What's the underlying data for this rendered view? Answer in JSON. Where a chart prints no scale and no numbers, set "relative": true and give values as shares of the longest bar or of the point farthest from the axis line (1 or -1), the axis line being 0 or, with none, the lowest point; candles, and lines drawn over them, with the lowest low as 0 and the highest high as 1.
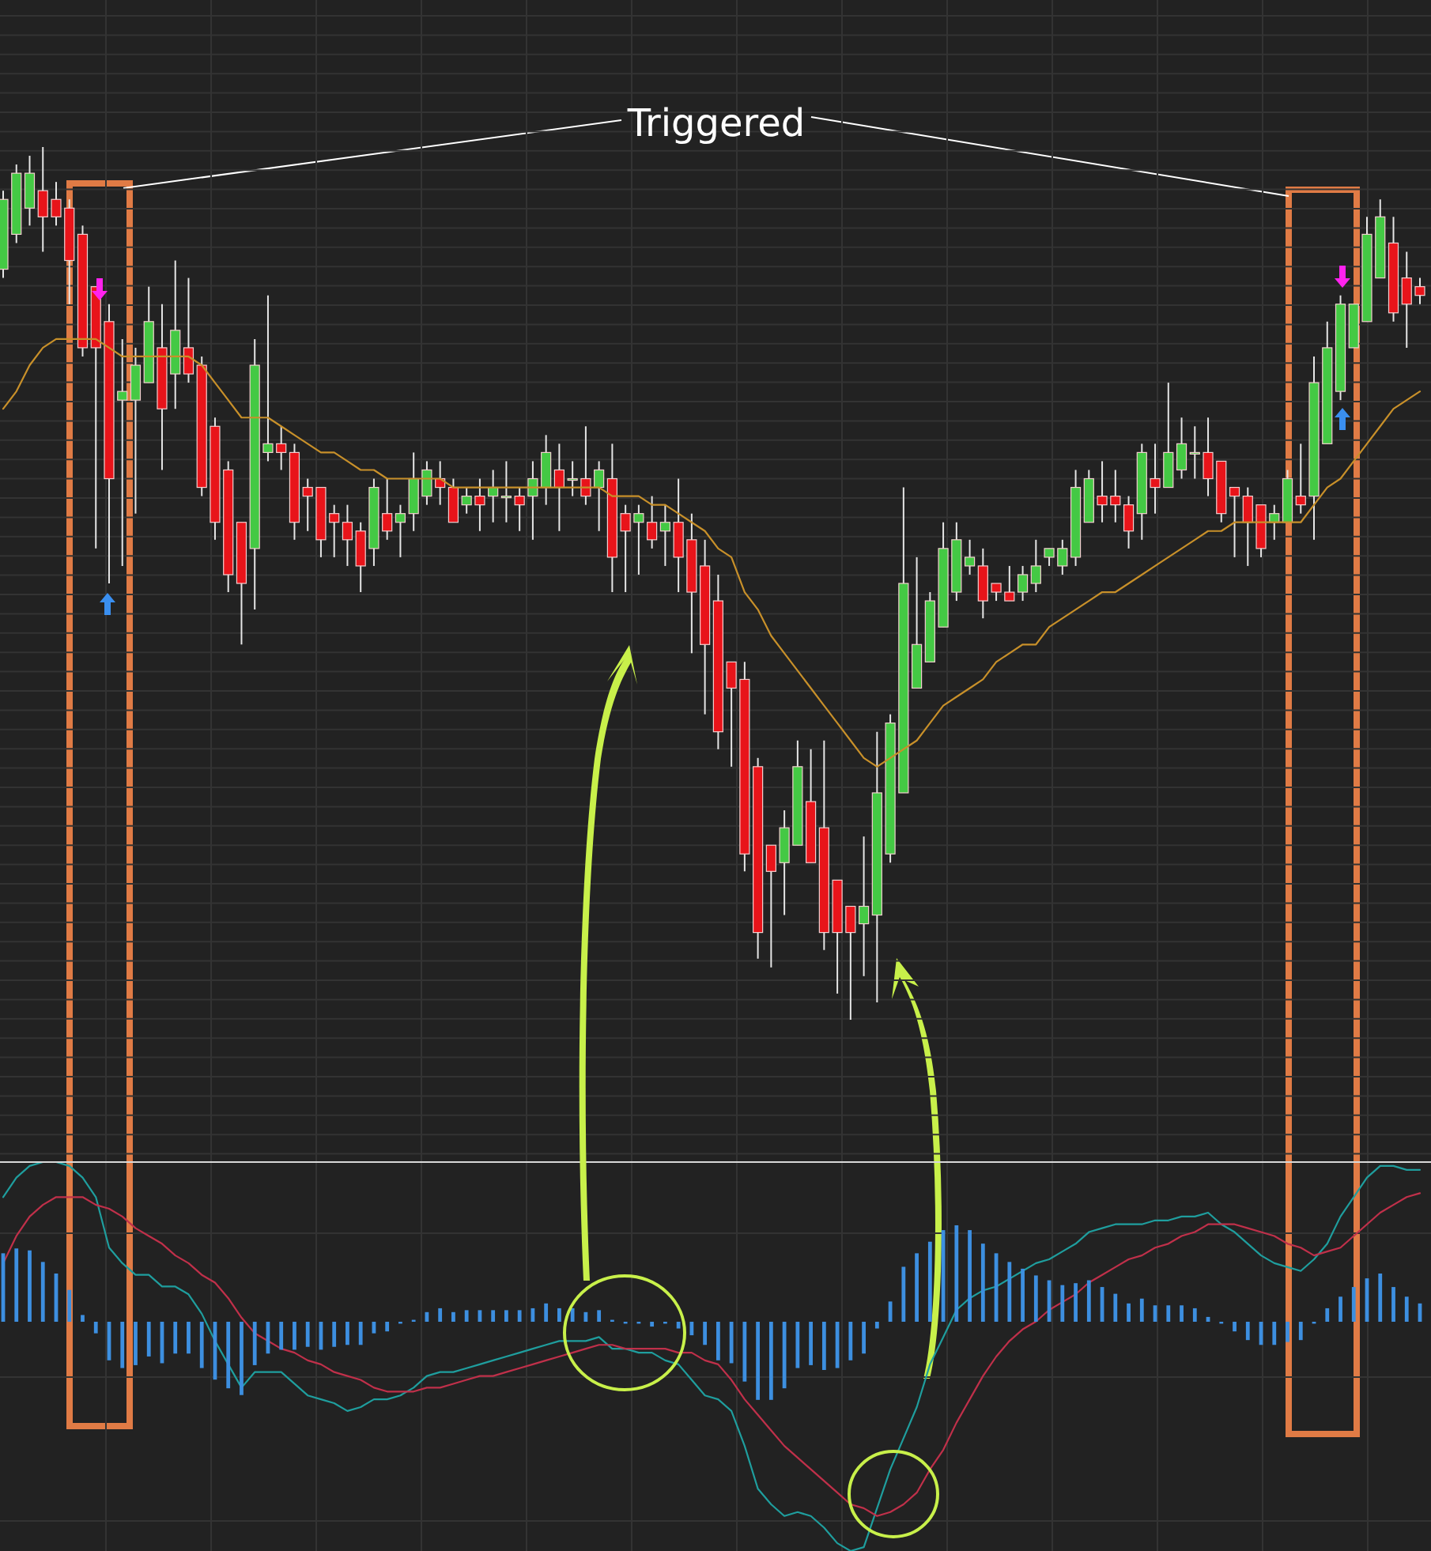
{
  "chart_data": [
    {
      "type": "candlestick",
      "relative": true,
      "grid": true,
      "annotations": [
        "Triggered"
      ],
      "categories": [
        null,
        null,
        null,
        null,
        null,
        null,
        null,
        null,
        null,
        null,
        null,
        null,
        null,
        null,
        null,
        null,
        null,
        null,
        null,
        null,
        null,
        null,
        null,
        null,
        null,
        null,
        null,
        null,
        null,
        null,
        null,
        null,
        null,
        null,
        null,
        null,
        null,
        null,
        null,
        null,
        null,
        null,
        null,
        null,
        null,
        null,
        null,
        null,
        null,
        null,
        null,
        null,
        null,
        null,
        null,
        null,
        null,
        null,
        null,
        null,
        null,
        null,
        null,
        null,
        null,
        null,
        null,
        null,
        null,
        null,
        null,
        null,
        null,
        null,
        null,
        null,
        null,
        null,
        null,
        null,
        null,
        null,
        null,
        null,
        null,
        null,
        null,
        null,
        null,
        null,
        null,
        null,
        null,
        null,
        null,
        null,
        null,
        null,
        null,
        null,
        null,
        null,
        null,
        null,
        null,
        null,
        null,
        null
      ],
      "ohlc": [
        [
          0.86,
          0.95,
          0.85,
          0.94
        ],
        [
          0.9,
          0.98,
          0.89,
          0.97
        ],
        [
          0.93,
          0.99,
          0.91,
          0.97
        ],
        [
          0.95,
          1,
          0.88,
          0.92
        ],
        [
          0.94,
          0.96,
          0.91,
          0.92
        ],
        [
          0.93,
          0.94,
          0.82,
          0.87
        ],
        [
          0.9,
          0.91,
          0.76,
          0.77
        ],
        [
          0.84,
          0.84,
          0.54,
          0.77
        ],
        [
          0.8,
          0.82,
          0.5,
          0.62
        ],
        [
          0.71,
          0.78,
          0.52,
          0.72
        ],
        [
          0.71,
          0.77,
          0.58,
          0.75
        ],
        [
          0.73,
          0.84,
          0.73,
          0.8
        ],
        [
          0.77,
          0.82,
          0.63,
          0.7
        ],
        [
          0.74,
          0.87,
          0.7,
          0.79
        ],
        [
          0.77,
          0.85,
          0.73,
          0.74
        ],
        [
          0.75,
          0.76,
          0.6,
          0.61
        ],
        [
          0.68,
          0.69,
          0.55,
          0.57
        ],
        [
          0.63,
          0.64,
          0.49,
          0.51
        ],
        [
          0.57,
          0.57,
          0.43,
          0.5
        ],
        [
          0.54,
          0.78,
          0.47,
          0.75
        ],
        [
          0.65,
          0.83,
          0.64,
          0.66
        ],
        [
          0.66,
          0.68,
          0.63,
          0.65
        ],
        [
          0.65,
          0.66,
          0.55,
          0.57
        ],
        [
          0.61,
          0.62,
          0.56,
          0.6
        ],
        [
          0.61,
          0.61,
          0.53,
          0.55
        ],
        [
          0.58,
          0.59,
          0.53,
          0.57
        ],
        [
          0.57,
          0.59,
          0.52,
          0.55
        ],
        [
          0.56,
          0.57,
          0.49,
          0.52
        ],
        [
          0.54,
          0.62,
          0.52,
          0.61
        ],
        [
          0.58,
          0.62,
          0.55,
          0.56
        ],
        [
          0.57,
          0.59,
          0.53,
          0.58
        ],
        [
          0.58,
          0.65,
          0.56,
          0.62
        ],
        [
          0.6,
          0.64,
          0.59,
          0.63
        ],
        [
          0.62,
          0.64,
          0.59,
          0.61
        ],
        [
          0.61,
          0.62,
          0.57,
          0.57
        ],
        [
          0.59,
          0.61,
          0.58,
          0.6
        ],
        [
          0.6,
          0.62,
          0.56,
          0.59
        ],
        [
          0.6,
          0.63,
          0.57,
          0.61
        ],
        [
          0.6,
          0.64,
          0.57,
          0.6
        ],
        [
          0.6,
          0.61,
          0.56,
          0.59
        ],
        [
          0.6,
          0.64,
          0.55,
          0.62
        ],
        [
          0.61,
          0.67,
          0.59,
          0.65
        ],
        [
          0.63,
          0.66,
          0.56,
          0.61
        ],
        [
          0.62,
          0.64,
          0.6,
          0.62
        ],
        [
          0.62,
          0.68,
          0.59,
          0.6
        ],
        [
          0.61,
          0.64,
          0.56,
          0.63
        ],
        [
          0.62,
          0.66,
          0.49,
          0.53
        ],
        [
          0.58,
          0.59,
          0.49,
          0.56
        ],
        [
          0.57,
          0.59,
          0.51,
          0.58
        ],
        [
          0.57,
          0.6,
          0.54,
          0.55
        ],
        [
          0.56,
          0.59,
          0.52,
          0.57
        ],
        [
          0.57,
          0.62,
          0.49,
          0.53
        ],
        [
          0.55,
          0.58,
          0.42,
          0.49
        ],
        [
          0.52,
          0.55,
          0.35,
          0.43
        ],
        [
          0.48,
          0.51,
          0.31,
          0.33
        ],
        [
          0.41,
          0.41,
          0.29,
          0.38
        ],
        [
          0.39,
          0.41,
          0.17,
          0.19
        ],
        [
          0.29,
          0.3,
          0.07,
          0.1
        ],
        [
          0.2,
          0.2,
          0.06,
          0.17
        ],
        [
          0.18,
          0.24,
          0.12,
          0.22
        ],
        [
          0.2,
          0.32,
          0.2,
          0.29
        ],
        [
          0.25,
          0.31,
          0.18,
          0.18
        ],
        [
          0.22,
          0.32,
          0.08,
          0.1
        ],
        [
          0.16,
          0.16,
          0.03,
          0.1
        ],
        [
          0.13,
          0.13,
          0,
          0.1
        ],
        [
          0.11,
          0.21,
          0.05,
          0.13
        ],
        [
          0.12,
          0.33,
          0.02,
          0.26
        ],
        [
          0.19,
          0.35,
          0.18,
          0.34
        ],
        [
          0.26,
          0.61,
          0.26,
          0.5
        ],
        [
          0.38,
          0.53,
          0.38,
          0.43
        ],
        [
          0.41,
          0.49,
          0.41,
          0.48
        ],
        [
          0.45,
          0.57,
          0.45,
          0.54
        ],
        [
          0.49,
          0.57,
          0.48,
          0.55
        ],
        [
          0.52,
          0.55,
          0.51,
          0.53
        ],
        [
          0.52,
          0.54,
          0.46,
          0.48
        ],
        [
          0.5,
          0.5,
          0.48,
          0.49
        ],
        [
          0.49,
          0.52,
          0.48,
          0.48
        ],
        [
          0.49,
          0.52,
          0.48,
          0.51
        ],
        [
          0.5,
          0.55,
          0.49,
          0.52
        ],
        [
          0.53,
          0.54,
          0.52,
          0.54
        ],
        [
          0.52,
          0.55,
          0.51,
          0.54
        ],
        [
          0.53,
          0.63,
          0.52,
          0.61
        ],
        [
          0.57,
          0.63,
          0.57,
          0.62
        ],
        [
          0.6,
          0.64,
          0.57,
          0.59
        ],
        [
          0.6,
          0.63,
          0.57,
          0.59
        ],
        [
          0.59,
          0.6,
          0.54,
          0.56
        ],
        [
          0.58,
          0.66,
          0.55,
          0.65
        ],
        [
          0.62,
          0.66,
          0.58,
          0.61
        ],
        [
          0.61,
          0.73,
          0.61,
          0.65
        ],
        [
          0.63,
          0.69,
          0.62,
          0.66
        ],
        [
          0.65,
          0.68,
          0.62,
          0.65
        ],
        [
          0.65,
          0.69,
          0.6,
          0.62
        ],
        [
          0.64,
          0.64,
          0.57,
          0.58
        ],
        [
          0.61,
          0.61,
          0.53,
          0.6
        ],
        [
          0.6,
          0.61,
          0.52,
          0.57
        ],
        [
          0.59,
          0.59,
          0.53,
          0.54
        ],
        [
          0.57,
          0.59,
          0.55,
          0.58
        ],
        [
          0.57,
          0.63,
          0.57,
          0.62
        ],
        [
          0.6,
          0.66,
          0.58,
          0.59
        ],
        [
          0.6,
          0.76,
          0.55,
          0.73
        ],
        [
          0.66,
          0.8,
          0.66,
          0.77
        ],
        [
          0.72,
          0.83,
          0.71,
          0.82
        ],
        [
          0.77,
          0.82,
          0.77,
          0.82
        ],
        [
          0.8,
          0.92,
          0.8,
          0.9
        ],
        [
          0.85,
          0.94,
          0.85,
          0.92
        ],
        [
          0.89,
          0.92,
          0.8,
          0.81
        ],
        [
          0.85,
          0.88,
          0.77,
          0.82
        ],
        [
          0.84,
          0.85,
          0.82,
          0.83
        ]
      ],
      "series": [
        {
          "type": "line",
          "color": "#c8902a",
          "values": [
            0.7,
            0.72,
            0.75,
            0.77,
            0.78,
            0.78,
            0.78,
            0.78,
            0.77,
            0.76,
            0.76,
            0.76,
            0.76,
            0.76,
            0.76,
            0.75,
            0.73,
            0.71,
            0.69,
            0.69,
            0.69,
            0.68,
            0.67,
            0.66,
            0.65,
            0.65,
            0.64,
            0.63,
            0.63,
            0.62,
            0.62,
            0.62,
            0.62,
            0.62,
            0.61,
            0.61,
            0.61,
            0.61,
            0.61,
            0.61,
            0.61,
            0.61,
            0.61,
            0.61,
            0.61,
            0.61,
            0.6,
            0.6,
            0.6,
            0.59,
            0.59,
            0.58,
            0.57,
            0.56,
            0.54,
            0.53,
            0.49,
            0.47,
            0.44,
            0.42,
            0.4,
            0.38,
            0.36,
            0.34,
            0.32,
            0.3,
            0.29,
            0.3,
            0.31,
            0.32,
            0.34,
            0.36,
            0.37,
            0.38,
            0.39,
            0.41,
            0.42,
            0.43,
            0.43,
            0.45,
            0.46,
            0.47,
            0.48,
            0.49,
            0.49,
            0.5,
            0.51,
            0.52,
            0.53,
            0.54,
            0.55,
            0.56,
            0.56,
            0.57,
            0.57,
            0.57,
            0.57,
            0.57,
            0.57,
            0.59,
            0.61,
            0.62,
            0.64,
            0.66,
            0.68,
            0.7,
            0.71,
            0.72
          ]
        }
      ]
    },
    {
      "type": "line",
      "relative": true,
      "grid": true,
      "categories": [
        null,
        null,
        null,
        null,
        null,
        null,
        null,
        null,
        null,
        null,
        null,
        null,
        null,
        null,
        null,
        null,
        null,
        null,
        null,
        null,
        null,
        null,
        null,
        null,
        null,
        null,
        null,
        null,
        null,
        null,
        null,
        null,
        null,
        null,
        null,
        null,
        null,
        null,
        null,
        null,
        null,
        null,
        null,
        null,
        null,
        null,
        null,
        null,
        null,
        null,
        null,
        null,
        null,
        null,
        null,
        null,
        null,
        null,
        null,
        null,
        null,
        null,
        null,
        null,
        null,
        null,
        null,
        null,
        null,
        null,
        null,
        null,
        null,
        null,
        null,
        null,
        null,
        null,
        null,
        null,
        null,
        null,
        null,
        null,
        null,
        null,
        null,
        null,
        null,
        null,
        null,
        null,
        null,
        null,
        null,
        null,
        null,
        null,
        null,
        null,
        null,
        null,
        null,
        null,
        null,
        null,
        null,
        null
      ],
      "series": [
        {
          "type": "line",
          "color": "#1f9e9e",
          "values": [
            0.91,
            0.96,
            0.99,
            1,
            1,
            0.99,
            0.96,
            0.91,
            0.78,
            0.74,
            0.71,
            0.71,
            0.68,
            0.68,
            0.66,
            0.61,
            0.54,
            0.48,
            0.42,
            0.46,
            0.46,
            0.46,
            0.43,
            0.4,
            0.39,
            0.38,
            0.36,
            0.37,
            0.39,
            0.39,
            0.4,
            0.42,
            0.45,
            0.46,
            0.46,
            0.47,
            0.48,
            0.49,
            0.5,
            0.51,
            0.52,
            0.53,
            0.54,
            0.54,
            0.54,
            0.55,
            0.52,
            0.52,
            0.51,
            0.51,
            0.49,
            0.48,
            0.44,
            0.4,
            0.39,
            0.36,
            0.27,
            0.16,
            0.12,
            0.09,
            0.1,
            0.09,
            0.06,
            0.02,
            0,
            0.01,
            0.11,
            0.21,
            0.29,
            0.37,
            0.48,
            0.55,
            0.62,
            0.65,
            0.67,
            0.68,
            0.7,
            0.72,
            0.74,
            0.75,
            0.77,
            0.79,
            0.82,
            0.83,
            0.84,
            0.84,
            0.84,
            0.85,
            0.85,
            0.86,
            0.86,
            0.87,
            0.84,
            0.82,
            0.79,
            0.76,
            0.74,
            0.73,
            0.72,
            0.75,
            0.79,
            0.86,
            0.91,
            0.96,
            0.99,
            0.99,
            0.98,
            0.98
          ]
        },
        {
          "type": "line",
          "color": "#c0304a",
          "values": [
            0.74,
            0.81,
            0.86,
            0.89,
            0.91,
            0.91,
            0.91,
            0.89,
            0.88,
            0.86,
            0.83,
            0.81,
            0.79,
            0.76,
            0.74,
            0.71,
            0.69,
            0.65,
            0.6,
            0.56,
            0.54,
            0.52,
            0.51,
            0.49,
            0.48,
            0.46,
            0.45,
            0.44,
            0.42,
            0.41,
            0.41,
            0.41,
            0.42,
            0.42,
            0.43,
            0.44,
            0.45,
            0.45,
            0.46,
            0.47,
            0.48,
            0.49,
            0.5,
            0.51,
            0.52,
            0.53,
            0.53,
            0.52,
            0.52,
            0.52,
            0.52,
            0.51,
            0.51,
            0.49,
            0.48,
            0.44,
            0.39,
            0.35,
            0.31,
            0.27,
            0.24,
            0.21,
            0.18,
            0.15,
            0.12,
            0.11,
            0.09,
            0.1,
            0.12,
            0.15,
            0.21,
            0.26,
            0.33,
            0.39,
            0.45,
            0.5,
            0.54,
            0.57,
            0.59,
            0.62,
            0.64,
            0.66,
            0.69,
            0.71,
            0.73,
            0.75,
            0.76,
            0.78,
            0.79,
            0.81,
            0.82,
            0.84,
            0.84,
            0.84,
            0.83,
            0.82,
            0.81,
            0.79,
            0.78,
            0.76,
            0.77,
            0.78,
            0.81,
            0.84,
            0.87,
            0.89,
            0.91,
            0.92
          ]
        }
      ]
    },
    {
      "type": "bar",
      "relative": true,
      "color": "#3d8fe0",
      "categories": [
        null,
        null,
        null,
        null,
        null,
        null,
        null,
        null,
        null,
        null,
        null,
        null,
        null,
        null,
        null,
        null,
        null,
        null,
        null,
        null,
        null,
        null,
        null,
        null,
        null,
        null,
        null,
        null,
        null,
        null,
        null,
        null,
        null,
        null,
        null,
        null,
        null,
        null,
        null,
        null,
        null,
        null,
        null,
        null,
        null,
        null,
        null,
        null,
        null,
        null,
        null,
        null,
        null,
        null,
        null,
        null,
        null,
        null,
        null,
        null,
        null,
        null,
        null,
        null,
        null,
        null,
        null,
        null,
        null,
        null,
        null,
        null,
        null,
        null,
        null,
        null,
        null,
        null,
        null,
        null,
        null,
        null,
        null,
        null,
        null,
        null,
        null,
        null,
        null,
        null,
        null,
        null,
        null,
        null,
        null,
        null,
        null,
        null,
        null,
        null,
        null,
        null,
        null,
        null,
        null,
        null,
        null,
        null
      ],
      "values": [
        0.71,
        0.76,
        0.74,
        0.62,
        0.5,
        0.33,
        0.07,
        -0.12,
        -0.4,
        -0.48,
        -0.45,
        -0.36,
        -0.43,
        -0.33,
        -0.33,
        -0.48,
        -0.6,
        -0.69,
        -0.76,
        -0.45,
        -0.33,
        -0.29,
        -0.29,
        -0.26,
        -0.29,
        -0.26,
        -0.24,
        -0.24,
        -0.12,
        -0.1,
        -0.02,
        0.02,
        0.1,
        0.14,
        0.1,
        0.12,
        0.12,
        0.12,
        0.12,
        0.12,
        0.14,
        0.19,
        0.14,
        0.14,
        0.1,
        0.12,
        0.02,
        -0.02,
        -0.02,
        -0.05,
        -0.02,
        -0.07,
        -0.14,
        -0.24,
        -0.4,
        -0.43,
        -0.62,
        -0.81,
        -0.81,
        -0.69,
        -0.48,
        -0.45,
        -0.5,
        -0.48,
        -0.4,
        -0.33,
        -0.07,
        0.21,
        0.57,
        0.71,
        0.83,
        0.95,
        1,
        0.95,
        0.81,
        0.71,
        0.62,
        0.55,
        0.48,
        0.43,
        0.38,
        0.4,
        0.43,
        0.36,
        0.29,
        0.19,
        0.24,
        0.17,
        0.17,
        0.17,
        0.14,
        0.05,
        -0.02,
        -0.1,
        -0.19,
        -0.24,
        -0.24,
        -0.21,
        -0.19,
        -0.02,
        0.14,
        0.26,
        0.36,
        0.45,
        0.5,
        0.36,
        0.26,
        0.19
      ]
    }
  ]
}
